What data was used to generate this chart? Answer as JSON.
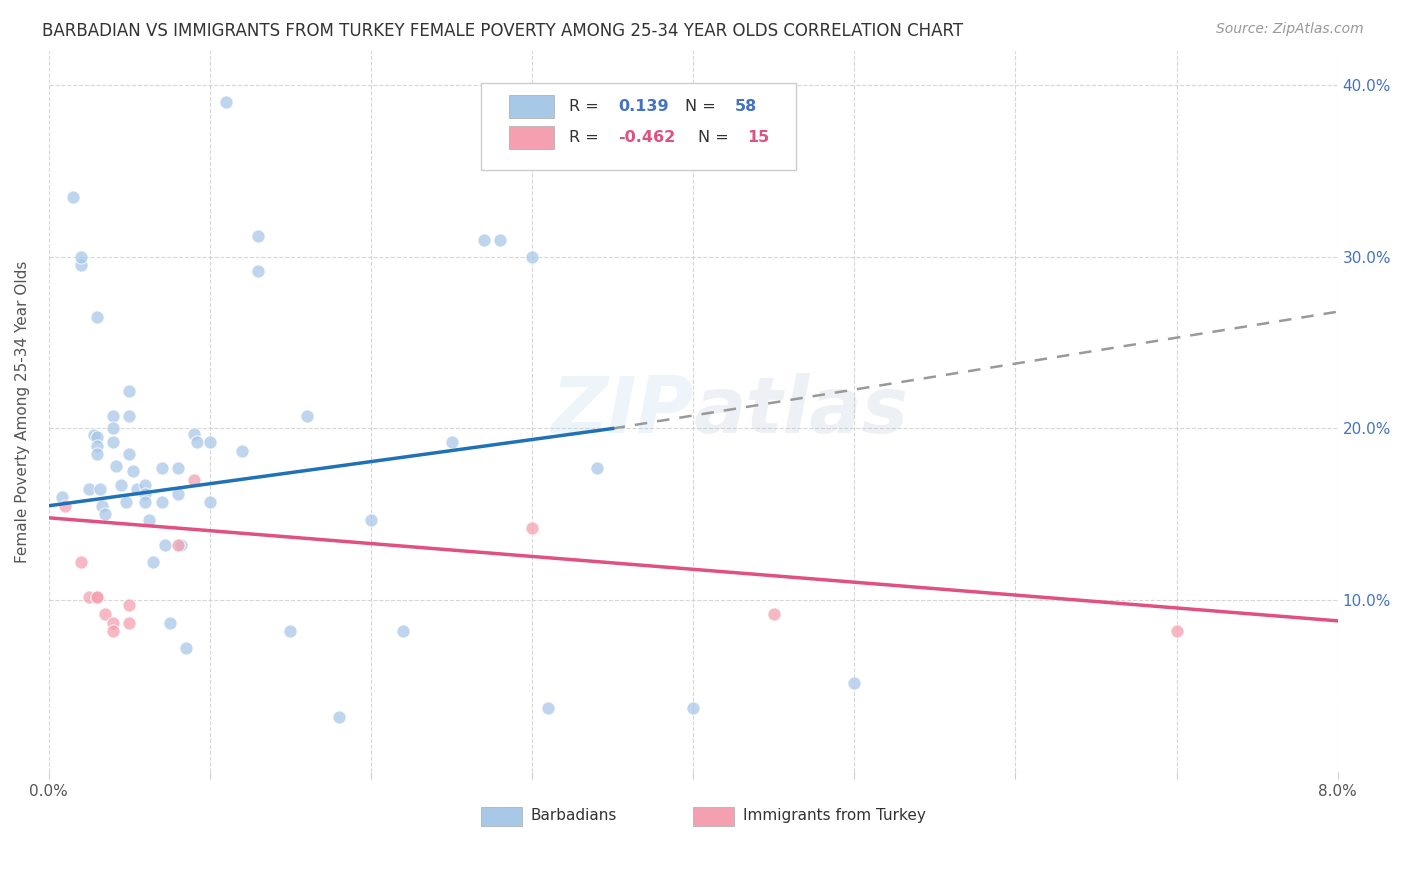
{
  "title": "BARBADIAN VS IMMIGRANTS FROM TURKEY FEMALE POVERTY AMONG 25-34 YEAR OLDS CORRELATION CHART",
  "source": "Source: ZipAtlas.com",
  "ylabel": "Female Poverty Among 25-34 Year Olds",
  "watermark": "ZIPatlas",
  "barbadian_R": 0.139,
  "barbadian_N": 58,
  "turkey_R": -0.462,
  "turkey_N": 15,
  "xlim": [
    0.0,
    0.08
  ],
  "ylim": [
    0.0,
    0.42
  ],
  "blue_scatter_color": "#a8c8e8",
  "blue_line_color": "#2171b5",
  "pink_scatter_color": "#f4a0b0",
  "pink_line_color": "#e05080",
  "dash_line_color": "#999999",
  "background_color": "#ffffff",
  "grid_color": "#cccccc",
  "barbadian_x": [
    0.0008,
    0.0015,
    0.002,
    0.002,
    0.0025,
    0.0028,
    0.003,
    0.003,
    0.003,
    0.0032,
    0.0033,
    0.0035,
    0.004,
    0.004,
    0.004,
    0.0042,
    0.0045,
    0.0048,
    0.005,
    0.005,
    0.005,
    0.0052,
    0.0055,
    0.006,
    0.006,
    0.006,
    0.0062,
    0.0065,
    0.007,
    0.007,
    0.0072,
    0.0075,
    0.008,
    0.008,
    0.0082,
    0.0085,
    0.009,
    0.0092,
    0.01,
    0.01,
    0.011,
    0.012,
    0.013,
    0.013,
    0.015,
    0.016,
    0.018,
    0.02,
    0.022,
    0.025,
    0.027,
    0.028,
    0.03,
    0.031,
    0.034,
    0.04,
    0.05,
    0.003
  ],
  "barbadian_y": [
    0.16,
    0.335,
    0.295,
    0.3,
    0.165,
    0.196,
    0.195,
    0.19,
    0.185,
    0.165,
    0.155,
    0.15,
    0.207,
    0.2,
    0.192,
    0.178,
    0.167,
    0.157,
    0.222,
    0.207,
    0.185,
    0.175,
    0.165,
    0.167,
    0.162,
    0.157,
    0.147,
    0.122,
    0.177,
    0.157,
    0.132,
    0.087,
    0.177,
    0.162,
    0.132,
    0.072,
    0.197,
    0.192,
    0.192,
    0.157,
    0.39,
    0.187,
    0.312,
    0.292,
    0.082,
    0.207,
    0.032,
    0.147,
    0.082,
    0.192,
    0.31,
    0.31,
    0.3,
    0.037,
    0.177,
    0.037,
    0.052,
    0.265
  ],
  "turkey_x": [
    0.001,
    0.002,
    0.0025,
    0.003,
    0.003,
    0.0035,
    0.004,
    0.004,
    0.005,
    0.005,
    0.008,
    0.009,
    0.03,
    0.045,
    0.07
  ],
  "turkey_y": [
    0.155,
    0.122,
    0.102,
    0.102,
    0.102,
    0.092,
    0.087,
    0.082,
    0.097,
    0.087,
    0.132,
    0.17,
    0.142,
    0.092,
    0.082
  ],
  "blue_trend_x0": 0.0,
  "blue_trend_x1": 0.035,
  "blue_trend_y0": 0.155,
  "blue_trend_y1": 0.2,
  "dash_trend_x0": 0.035,
  "dash_trend_x1": 0.08,
  "dash_trend_y0": 0.2,
  "dash_trend_y1": 0.268,
  "pink_trend_x0": 0.0,
  "pink_trend_x1": 0.08,
  "pink_trend_y0": 0.148,
  "pink_trend_y1": 0.088
}
